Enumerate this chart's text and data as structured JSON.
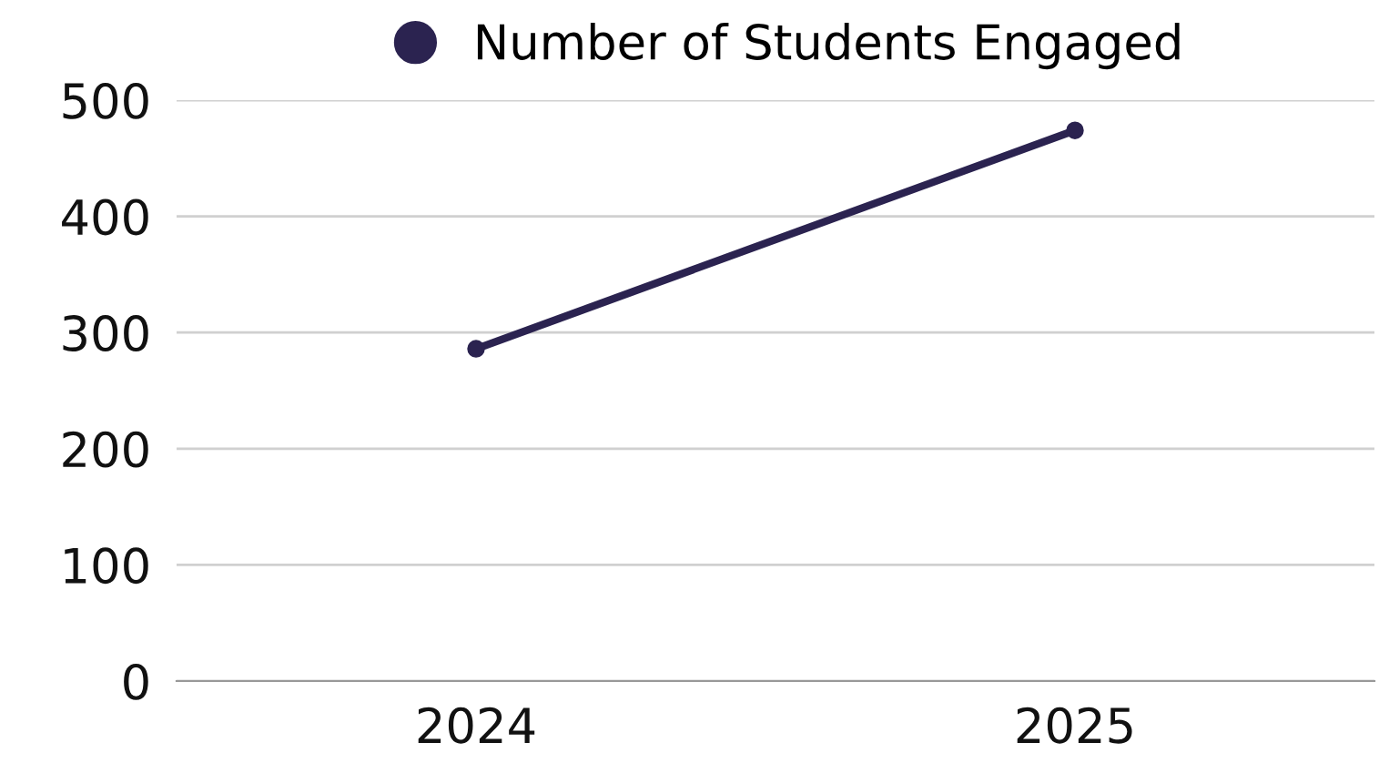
{
  "chart_data": {
    "type": "line",
    "categories": [
      "2024",
      "2025"
    ],
    "series": [
      {
        "name": "Number of Students Engaged",
        "color": "#2b2350",
        "values": [
          286,
          474
        ]
      }
    ],
    "ylim": [
      0,
      500
    ],
    "yticks": [
      0,
      100,
      200,
      300,
      400,
      500
    ],
    "grid": "y",
    "legend": "top",
    "marker": "circle",
    "line_style": "solid"
  }
}
